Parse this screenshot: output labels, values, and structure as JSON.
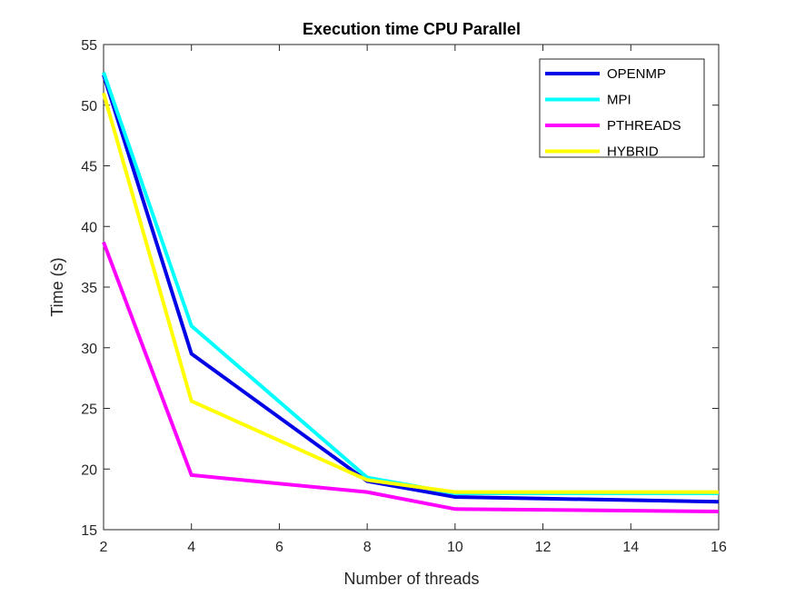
{
  "chart_data": {
    "type": "line",
    "title": "Execution time CPU Parallel",
    "xlabel": "Number of threads",
    "ylabel": "Time (s)",
    "xlim": [
      2,
      16
    ],
    "ylim": [
      15,
      55
    ],
    "xticks": [
      2,
      4,
      6,
      8,
      10,
      12,
      14,
      16
    ],
    "yticks": [
      15,
      20,
      25,
      30,
      35,
      40,
      45,
      50,
      55
    ],
    "x": [
      2,
      4,
      8,
      10,
      16
    ],
    "legend_position": "top-right",
    "grid": false,
    "series": [
      {
        "name": "OPENMP",
        "color": "#0000e6",
        "values": [
          52.5,
          29.5,
          19.0,
          17.7,
          17.3
        ]
      },
      {
        "name": "MPI",
        "color": "#00ffff",
        "values": [
          52.7,
          31.8,
          19.3,
          18.0,
          18.0
        ]
      },
      {
        "name": "PTHREADS",
        "color": "#ff00ff",
        "values": [
          38.7,
          19.5,
          18.1,
          16.7,
          16.5
        ]
      },
      {
        "name": "HYBRID",
        "color": "#ffff00",
        "values": [
          51.0,
          25.6,
          19.1,
          18.1,
          18.1
        ]
      }
    ]
  }
}
